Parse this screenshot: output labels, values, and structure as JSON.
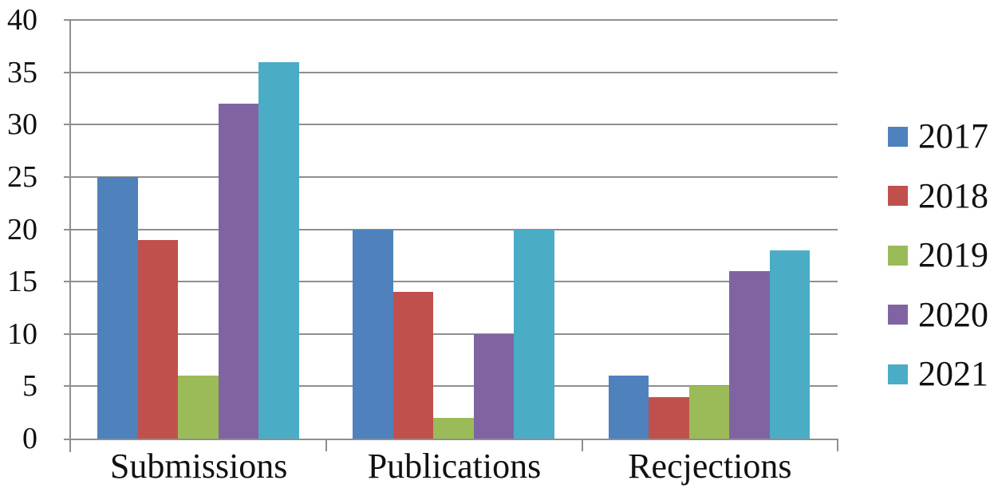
{
  "chart_data": {
    "type": "bar",
    "title": "",
    "categories": [
      "Submissions",
      "Publications",
      "Recjections"
    ],
    "series": [
      {
        "name": "2017",
        "color": "#4F81BD",
        "values": [
          25,
          20,
          6
        ]
      },
      {
        "name": "2018",
        "color": "#C0504D",
        "values": [
          19,
          14,
          4
        ]
      },
      {
        "name": "2019",
        "color": "#9BBB59",
        "values": [
          6,
          2,
          5
        ]
      },
      {
        "name": "2020",
        "color": "#8064A2",
        "values": [
          32,
          10,
          16
        ]
      },
      {
        "name": "2021",
        "color": "#4BACC6",
        "values": [
          36,
          20,
          18
        ]
      }
    ],
    "xlabel": "",
    "ylabel": "",
    "ylim": [
      0,
      40
    ],
    "y_tick_step": 5,
    "y_tick_labels": [
      "0",
      "5",
      "10",
      "15",
      "20",
      "25",
      "30",
      "35",
      "40"
    ],
    "grid": "horizontal",
    "gridline_color": "#8F8F8F",
    "axis_color": "#8F8F8F",
    "legend_position": "right",
    "legend_labels": [
      "2017",
      "2018",
      "2019",
      "2020",
      "2021"
    ]
  }
}
